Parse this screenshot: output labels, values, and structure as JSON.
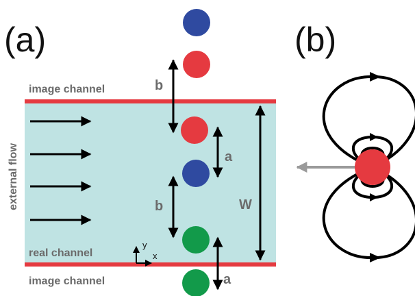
{
  "panel_a": {
    "label": "(a)",
    "image_channel_top_label": "image channel",
    "image_channel_bottom_label": "image channel",
    "real_channel_label": "real channel",
    "external_flow_label": "external flow",
    "axis_y_label": "y",
    "axis_x_label": "x",
    "dim_b_upper": "b",
    "dim_a_upper": "a",
    "dim_b_lower": "b",
    "dim_a_lower": "a",
    "dim_w": "W"
  },
  "panel_b": {
    "label": "(b)"
  },
  "colors": {
    "channel_fill": "#bfe3e3",
    "channel_wall": "#e53a40",
    "particle_red": "#e53a40",
    "particle_blue": "#2f4aa0",
    "particle_green": "#129a4a",
    "label_gray": "#6b6b6b",
    "arrow_gray": "#9a9a9a"
  }
}
